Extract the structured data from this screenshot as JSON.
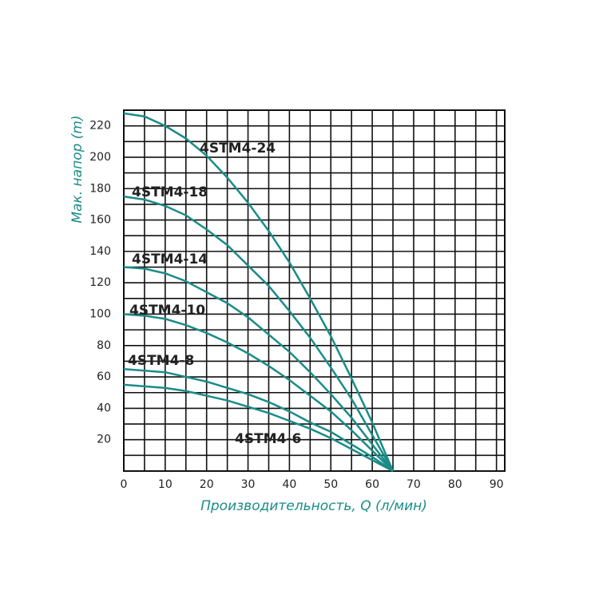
{
  "chart_data": {
    "type": "line",
    "x_label": "Производительность, Q (л/мин)",
    "y_label": "Мак. напор (m)",
    "x": [
      0,
      5,
      10,
      15,
      20,
      25,
      30,
      35,
      40,
      45,
      50,
      55,
      60,
      65
    ],
    "series": [
      {
        "name": "4STM4-24",
        "color": "#1a8c88",
        "values": [
          228,
          226,
          220,
          212,
          201,
          187,
          171,
          153,
          133,
          110,
          86,
          59,
          31,
          0
        ]
      },
      {
        "name": "4STM4-18",
        "color": "#1a8c88",
        "values": [
          175,
          173,
          169,
          163,
          154,
          144,
          131,
          118,
          102,
          85,
          66,
          46,
          23,
          0
        ]
      },
      {
        "name": "4STM4-14",
        "color": "#1a8c88",
        "values": [
          130,
          129,
          126,
          121,
          114,
          107,
          98,
          87,
          76,
          63,
          49,
          34,
          17,
          0
        ]
      },
      {
        "name": "4STM4-10",
        "color": "#1a8c88",
        "values": [
          100,
          99,
          97,
          93,
          88,
          82,
          75,
          67,
          58,
          48,
          38,
          26,
          13,
          0
        ]
      },
      {
        "name": "4STM4-8",
        "color": "#1a8c88",
        "values": [
          65,
          64,
          63,
          60,
          57,
          53,
          49,
          44,
          38,
          31,
          25,
          17,
          9,
          0
        ]
      },
      {
        "name": "4STM4-6",
        "color": "#1a8c88",
        "values": [
          55,
          54,
          53,
          51,
          48,
          45,
          41,
          37,
          32,
          27,
          21,
          14,
          7,
          0
        ]
      }
    ],
    "xlim": [
      0,
      92
    ],
    "ylim": [
      0,
      230
    ],
    "xticks": [
      0,
      10,
      20,
      30,
      40,
      50,
      60,
      70,
      80,
      90
    ],
    "yticks": [
      20,
      40,
      60,
      80,
      100,
      120,
      140,
      160,
      180,
      200,
      220
    ],
    "x_minor_ticks": [
      5,
      15,
      25,
      35,
      45,
      55,
      65,
      75,
      85
    ],
    "y_minor_ticks": [
      10,
      30,
      50,
      70,
      90,
      110,
      130,
      150,
      170,
      190,
      210
    ],
    "grid": true
  }
}
